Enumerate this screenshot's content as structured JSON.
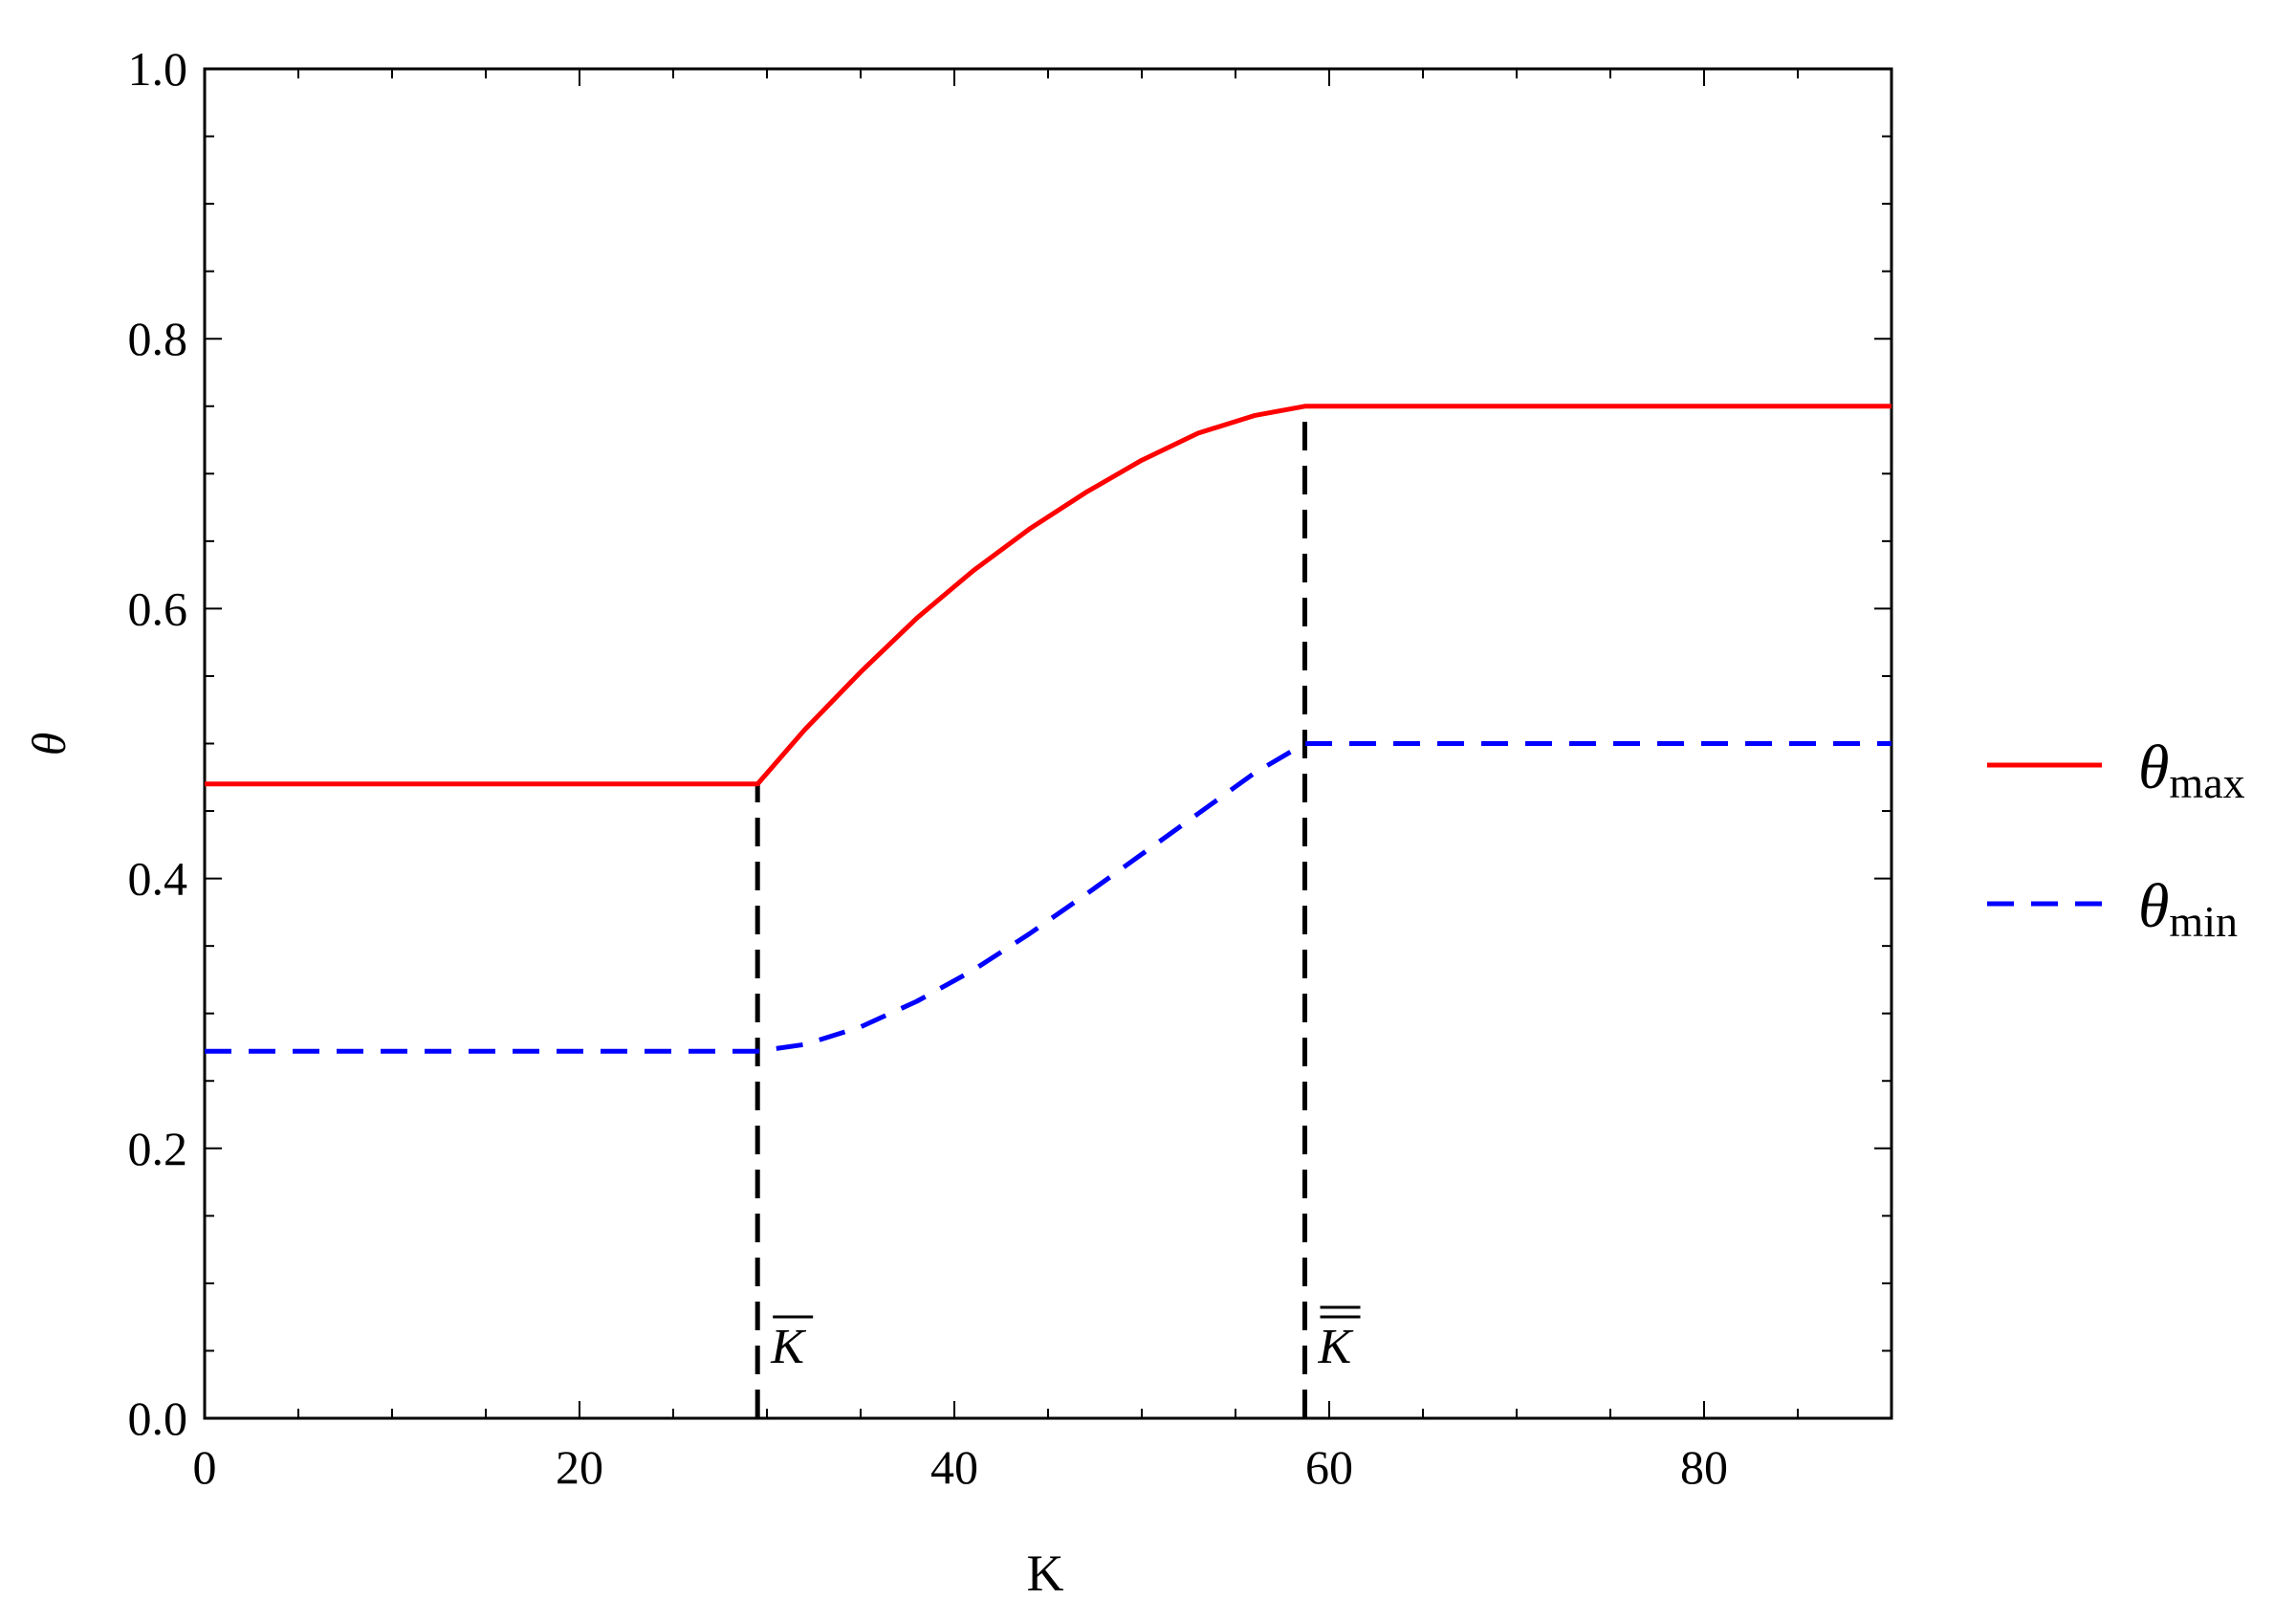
{
  "chart_data": {
    "type": "line",
    "title": "",
    "xlabel": "K",
    "ylabel": "θ",
    "xlim": [
      0,
      90
    ],
    "ylim": [
      0.0,
      1.0
    ],
    "x_ticks": [
      0,
      20,
      40,
      60,
      80
    ],
    "x_tick_labels": [
      "0",
      "20",
      "40",
      "60",
      "80"
    ],
    "y_ticks": [
      0.0,
      0.2,
      0.4,
      0.6,
      0.8,
      1.0
    ],
    "y_tick_labels": [
      "0.0",
      "0.2",
      "0.4",
      "0.6",
      "0.8",
      "1.0"
    ],
    "grid": false,
    "legend_position": "right",
    "series": [
      {
        "name": "θ",
        "name_sub": "max",
        "color": "#ff0000",
        "style": "solid",
        "x": [
          0,
          29.5,
          32,
          35,
          38,
          41,
          44,
          47,
          50,
          53,
          56,
          58.7,
          60,
          70,
          80,
          90
        ],
        "y": [
          0.47,
          0.47,
          0.51,
          0.553,
          0.593,
          0.628,
          0.659,
          0.686,
          0.71,
          0.73,
          0.743,
          0.75,
          0.75,
          0.75,
          0.75,
          0.75
        ]
      },
      {
        "name": "θ",
        "name_sub": "min",
        "color": "#0000ff",
        "style": "dashed",
        "x": [
          0,
          29.5,
          32,
          35,
          38,
          41,
          44,
          47,
          50,
          53,
          56,
          58.7,
          60,
          70,
          80,
          90
        ],
        "y": [
          0.272,
          0.272,
          0.277,
          0.29,
          0.309,
          0.332,
          0.359,
          0.388,
          0.418,
          0.448,
          0.478,
          0.5,
          0.5,
          0.5,
          0.5,
          0.5
        ]
      }
    ],
    "annotations": [
      {
        "x": 29.5,
        "y_range": [
          0.0,
          0.47
        ],
        "label": "K",
        "overline": "single"
      },
      {
        "x": 58.7,
        "y_range": [
          0.0,
          0.75
        ],
        "label": "K",
        "overline": "double"
      }
    ]
  }
}
